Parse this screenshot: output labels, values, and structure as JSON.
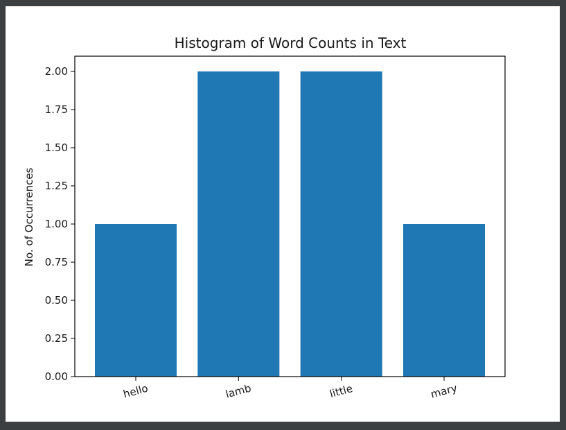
{
  "chart_data": {
    "type": "bar",
    "title": "Histogram of Word Counts in Text",
    "xlabel": "",
    "ylabel": "No. of Occurrences",
    "categories": [
      "hello",
      "lamb",
      "little",
      "mary"
    ],
    "values": [
      1,
      2,
      2,
      1
    ],
    "ylim": [
      0,
      2.1
    ],
    "yticks": [
      "0.00",
      "0.25",
      "0.50",
      "0.75",
      "1.00",
      "1.25",
      "1.50",
      "1.75",
      "2.00"
    ],
    "x_tick_rotation_deg": -15,
    "bar_color": "#1f77b4",
    "grid": false,
    "legend": "none"
  }
}
